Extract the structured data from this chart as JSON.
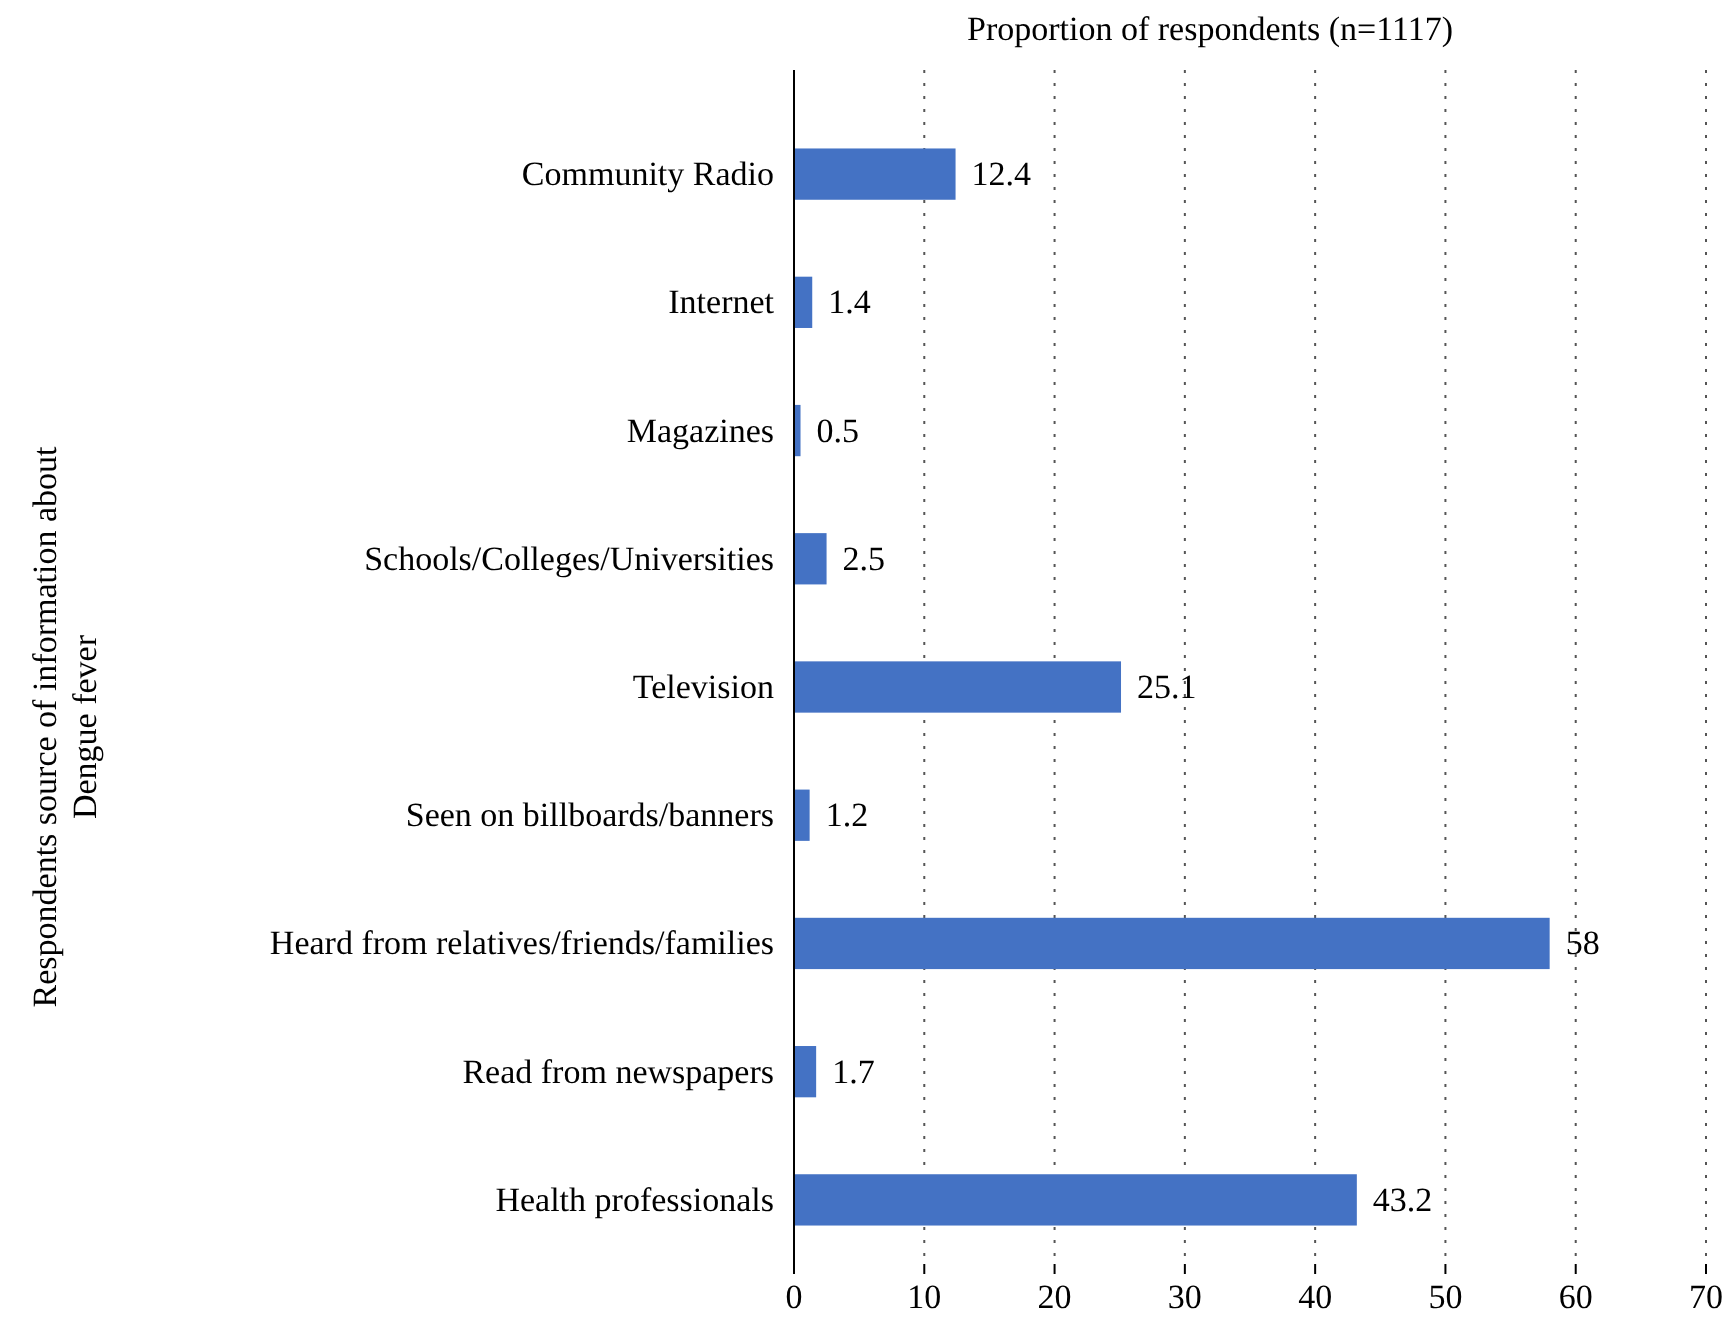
{
  "chart_data": {
    "type": "bar",
    "orientation": "horizontal",
    "xlabel": "Proportion of respondents (n=1117)",
    "ylabel": "Respondents source of information about Dengue fever",
    "categories": [
      "Community Radio",
      "Internet",
      "Magazines",
      "Schools/Colleges/Universities",
      "Television",
      "Seen on billboards/banners",
      "Heard from relatives/friends/families",
      "Read from newspapers",
      "Health professionals"
    ],
    "values": [
      12.4,
      1.4,
      0.5,
      2.5,
      25.1,
      1.2,
      58,
      1.7,
      43.2
    ],
    "color": "#4472c4",
    "xlim": [
      0,
      70
    ],
    "xticks": [
      0,
      10,
      20,
      30,
      40,
      50,
      60,
      70
    ],
    "grid": "x",
    "data_labels": true
  }
}
